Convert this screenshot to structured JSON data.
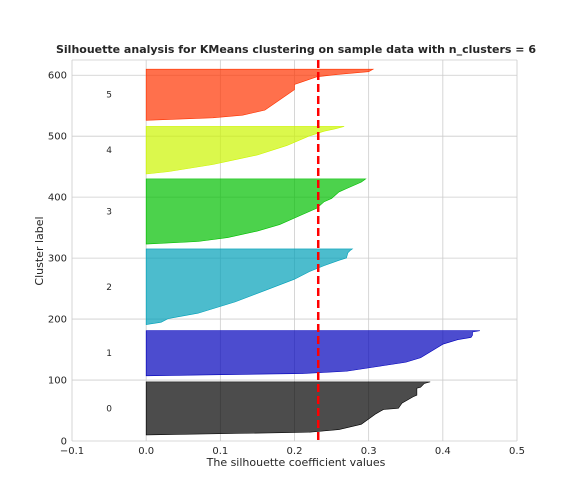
{
  "chart_data": {
    "type": "area",
    "title": "Silhouette analysis for KMeans clustering on sample data with n_clusters = 6",
    "xlabel": "The silhouette coefficient values",
    "ylabel": "Cluster label",
    "xlim": [
      -0.1,
      0.5
    ],
    "ylim": [
      0,
      625
    ],
    "xticks": [
      -0.1,
      0.0,
      0.1,
      0.2,
      0.3,
      0.4,
      0.5
    ],
    "xtick_labels": [
      "−0.1",
      "0.0",
      "0.1",
      "0.2",
      "0.3",
      "0.4",
      "0.5"
    ],
    "yticks": [
      0,
      100,
      200,
      300,
      400,
      500,
      600
    ],
    "ytick_labels": [
      "0",
      "100",
      "200",
      "300",
      "400",
      "500",
      "600"
    ],
    "grid": true,
    "average_silhouette_score": 0.232,
    "average_line_color": "#ff0000",
    "clusters": [
      {
        "label": "0",
        "y_start": 10,
        "y_end": 97,
        "color": "#000000",
        "profile": [
          [
            0,
            0.0
          ],
          [
            0.05,
            0.22
          ],
          [
            0.1,
            0.26
          ],
          [
            0.2,
            0.29
          ],
          [
            0.3,
            0.3
          ],
          [
            0.4,
            0.31
          ],
          [
            0.48,
            0.32
          ],
          [
            0.5,
            0.34
          ],
          [
            0.6,
            0.345
          ],
          [
            0.72,
            0.36
          ],
          [
            0.75,
            0.365
          ],
          [
            0.88,
            0.365
          ],
          [
            0.9,
            0.37
          ],
          [
            0.97,
            0.375
          ],
          [
            1,
            0.383
          ]
        ]
      },
      {
        "label": "1",
        "y_start": 107,
        "y_end": 181,
        "color": "#0000bb",
        "profile": [
          [
            0,
            0.0
          ],
          [
            0.05,
            0.21
          ],
          [
            0.1,
            0.27
          ],
          [
            0.2,
            0.31
          ],
          [
            0.3,
            0.35
          ],
          [
            0.4,
            0.37
          ],
          [
            0.5,
            0.38
          ],
          [
            0.6,
            0.39
          ],
          [
            0.65,
            0.395
          ],
          [
            0.7,
            0.4
          ],
          [
            0.8,
            0.42
          ],
          [
            0.85,
            0.438
          ],
          [
            0.9,
            0.44
          ],
          [
            0.97,
            0.44
          ],
          [
            1,
            0.45
          ]
        ]
      },
      {
        "label": "2",
        "y_start": 191,
        "y_end": 315,
        "color": "#00a0b8",
        "profile": [
          [
            0,
            0.0
          ],
          [
            0.03,
            0.02
          ],
          [
            0.08,
            0.03
          ],
          [
            0.15,
            0.07
          ],
          [
            0.3,
            0.12
          ],
          [
            0.45,
            0.16
          ],
          [
            0.6,
            0.2
          ],
          [
            0.7,
            0.22
          ],
          [
            0.78,
            0.24
          ],
          [
            0.85,
            0.26
          ],
          [
            0.88,
            0.27
          ],
          [
            0.95,
            0.272
          ],
          [
            0.98,
            0.275
          ],
          [
            1,
            0.278
          ]
        ]
      },
      {
        "label": "3",
        "y_start": 323,
        "y_end": 430,
        "color": "#00bf00",
        "profile": [
          [
            0,
            0.0
          ],
          [
            0.04,
            0.07
          ],
          [
            0.1,
            0.11
          ],
          [
            0.2,
            0.15
          ],
          [
            0.3,
            0.18
          ],
          [
            0.45,
            0.21
          ],
          [
            0.55,
            0.23
          ],
          [
            0.65,
            0.24
          ],
          [
            0.7,
            0.25
          ],
          [
            0.8,
            0.26
          ],
          [
            0.85,
            0.27
          ],
          [
            0.9,
            0.28
          ],
          [
            0.95,
            0.29
          ],
          [
            1,
            0.296
          ]
        ]
      },
      {
        "label": "4",
        "y_start": 438,
        "y_end": 516,
        "color": "#ccf500",
        "profile": [
          [
            0,
            0.0
          ],
          [
            0.05,
            0.03
          ],
          [
            0.1,
            0.05
          ],
          [
            0.2,
            0.09
          ],
          [
            0.3,
            0.12
          ],
          [
            0.4,
            0.15
          ],
          [
            0.5,
            0.17
          ],
          [
            0.6,
            0.19
          ],
          [
            0.7,
            0.205
          ],
          [
            0.8,
            0.22
          ],
          [
            0.9,
            0.24
          ],
          [
            0.95,
            0.255
          ],
          [
            1,
            0.267
          ]
        ]
      },
      {
        "label": "5",
        "y_start": 526,
        "y_end": 610,
        "color": "#ff3300",
        "profile": [
          [
            0,
            0.0
          ],
          [
            0.05,
            0.09
          ],
          [
            0.1,
            0.13
          ],
          [
            0.2,
            0.16
          ],
          [
            0.3,
            0.17
          ],
          [
            0.4,
            0.18
          ],
          [
            0.5,
            0.19
          ],
          [
            0.6,
            0.2
          ],
          [
            0.7,
            0.2
          ],
          [
            0.75,
            0.21
          ],
          [
            0.85,
            0.23
          ],
          [
            0.9,
            0.26
          ],
          [
            0.95,
            0.3
          ],
          [
            1,
            0.306
          ]
        ]
      }
    ]
  }
}
